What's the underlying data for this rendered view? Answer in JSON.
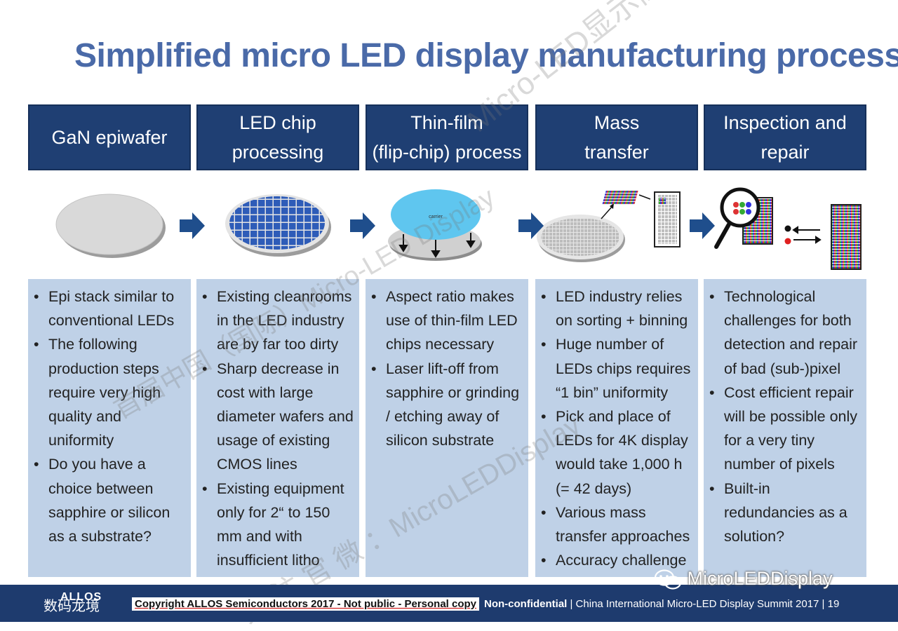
{
  "title": "Simplified micro LED display manufacturing process",
  "steps": [
    {
      "header": [
        "GaN epiwafer"
      ],
      "bullets": [
        "Epi stack similar to conventional LEDs",
        "The following production steps require very high quality and uniformity",
        "Do you have a choice between sapphire or silicon as a substrate?"
      ]
    },
    {
      "header": [
        "LED chip",
        "processing"
      ],
      "bullets": [
        "Existing cleanrooms in the LED industry are by far too dirty",
        "Sharp decrease in cost with large diameter wafers and usage of existing CMOS lines",
        "Existing equipment only for 2“ to 150 mm and with insufficient litho"
      ]
    },
    {
      "header": [
        "Thin-film",
        "(flip-chip) process"
      ],
      "carrier_label": "carrier",
      "bullets": [
        "Aspect ratio makes use of thin-film LED chips necessary",
        "Laser lift-off from sapphire or grinding / etching away of silicon substrate"
      ]
    },
    {
      "header": [
        "Mass",
        "transfer"
      ],
      "bullets": [
        "LED industry relies on sorting + binning",
        "Huge number of LEDs chips requires “1 bin” uniformity",
        "Pick and place of LEDs for 4K display would take 1,000 h (= 42 days)",
        "Various mass transfer approaches",
        "Accuracy challenge"
      ]
    },
    {
      "header": [
        "Inspection and",
        "repair"
      ],
      "bullets": [
        "Technological challenges for both detection and repair of bad (sub-)pixel",
        "Cost efficient repair will be possible only for a very tiny number of pixels",
        "Built-in redundancies as a solution?"
      ]
    }
  ],
  "footer": {
    "logo": "ALLOS",
    "copyright": "Copyright ALLOS Semiconductors 2017 - Not public - Personal copy",
    "confidential": "Non-confidential",
    "summit": " | China International Micro-LED Display Summit  2017 | 19"
  },
  "watermarks": {
    "wechat": "MicroLEDDisplay",
    "forum": "Micro-LED显示高峰论坛",
    "summit_cn": "首届中国（国际）Micro-LED Display",
    "follow_cn": "关 注 官 微 ：MicroLEDDisplay",
    "corner": "数码龙境"
  },
  "colors": {
    "title": "#4a6aa8",
    "header_bg": "#1f3f73",
    "panel_bg": "#bfd1e7",
    "arrow": "#1f4e8c",
    "footer_bg": "#1e3b6e"
  }
}
